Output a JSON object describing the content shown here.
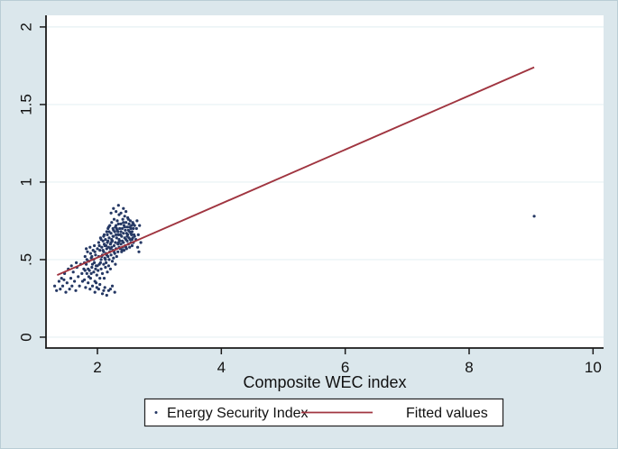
{
  "figure": {
    "background_color": "#dbe7ec",
    "plot_background_color": "#ffffff",
    "border_color": "#b9cdd5",
    "gridline_color": "#e6f1f3",
    "axis_color": "#1a1a1a",
    "text_color": "#111111"
  },
  "chart_data": {
    "type": "scatter",
    "title": "",
    "xlabel": "Composite WEC index",
    "ylabel": "",
    "xlim": [
      1.17,
      10.17
    ],
    "ylim": [
      -0.07,
      2.075
    ],
    "grid": true,
    "legend_position": "bottom-center",
    "x_ticks": [
      {
        "value": 2,
        "label": "2"
      },
      {
        "value": 4,
        "label": "4"
      },
      {
        "value": 6,
        "label": "6"
      },
      {
        "value": 8,
        "label": "8"
      },
      {
        "value": 10,
        "label": "10"
      }
    ],
    "y_ticks": [
      {
        "value": 0,
        "label": "0"
      },
      {
        "value": 0.5,
        "label": ".5"
      },
      {
        "value": 1,
        "label": "1"
      },
      {
        "value": 1.5,
        "label": "1.5"
      },
      {
        "value": 2,
        "label": "2"
      }
    ],
    "series": [
      {
        "name": "Energy Security Index",
        "type": "scatter",
        "color": "#253864",
        "marker": "dot",
        "points": [
          [
            1.31,
            0.33
          ],
          [
            1.34,
            0.3
          ],
          [
            1.38,
            0.36
          ],
          [
            1.4,
            0.31
          ],
          [
            1.42,
            0.38
          ],
          [
            1.44,
            0.33
          ],
          [
            1.47,
            0.41
          ],
          [
            1.49,
            0.29
          ],
          [
            1.51,
            0.35
          ],
          [
            1.53,
            0.44
          ],
          [
            1.55,
            0.31
          ],
          [
            1.57,
            0.38
          ],
          [
            1.59,
            0.33
          ],
          [
            1.61,
            0.42
          ],
          [
            1.63,
            0.36
          ],
          [
            1.65,
            0.3
          ],
          [
            1.67,
            0.45
          ],
          [
            1.69,
            0.39
          ],
          [
            1.71,
            0.33
          ],
          [
            1.73,
            0.47
          ],
          [
            1.75,
            0.41
          ],
          [
            1.76,
            0.36
          ],
          [
            1.66,
            0.48
          ],
          [
            1.58,
            0.46
          ],
          [
            1.46,
            0.37
          ],
          [
            1.78,
            0.44
          ],
          [
            1.79,
            0.37
          ],
          [
            1.8,
            0.52
          ],
          [
            1.81,
            0.32
          ],
          [
            1.82,
            0.47
          ],
          [
            1.83,
            0.41
          ],
          [
            1.84,
            0.55
          ],
          [
            1.85,
            0.35
          ],
          [
            1.86,
            0.49
          ],
          [
            1.87,
            0.43
          ],
          [
            1.88,
            0.58
          ],
          [
            1.89,
            0.38
          ],
          [
            1.9,
            0.51
          ],
          [
            1.91,
            0.45
          ],
          [
            1.92,
            0.33
          ],
          [
            1.93,
            0.56
          ],
          [
            1.94,
            0.42
          ],
          [
            1.95,
            0.48
          ],
          [
            1.96,
            0.36
          ],
          [
            1.97,
            0.53
          ],
          [
            1.98,
            0.46
          ],
          [
            1.99,
            0.4
          ],
          [
            2.0,
            0.57
          ],
          [
            1.8,
            0.43
          ],
          [
            1.83,
            0.5
          ],
          [
            1.86,
            0.39
          ],
          [
            1.89,
            0.54
          ],
          [
            1.92,
            0.47
          ],
          [
            1.95,
            0.59
          ],
          [
            1.98,
            0.35
          ],
          [
            1.79,
            0.48
          ],
          [
            1.85,
            0.44
          ],
          [
            1.91,
            0.52
          ],
          [
            1.97,
            0.44
          ],
          [
            1.88,
            0.31
          ],
          [
            1.94,
            0.5
          ],
          [
            2.0,
            0.46
          ],
          [
            1.82,
            0.57
          ],
          [
            1.9,
            0.41
          ],
          [
            1.96,
            0.55
          ],
          [
            2.01,
            0.43
          ],
          [
            2.02,
            0.52
          ],
          [
            2.02,
            0.61
          ],
          [
            2.03,
            0.47
          ],
          [
            2.04,
            0.56
          ],
          [
            2.04,
            0.38
          ],
          [
            2.05,
            0.64
          ],
          [
            2.06,
            0.5
          ],
          [
            2.06,
            0.44
          ],
          [
            2.07,
            0.58
          ],
          [
            2.08,
            0.41
          ],
          [
            2.08,
            0.53
          ],
          [
            2.09,
            0.62
          ],
          [
            2.1,
            0.47
          ],
          [
            2.1,
            0.55
          ],
          [
            2.11,
            0.38
          ],
          [
            2.11,
            0.66
          ],
          [
            2.12,
            0.51
          ],
          [
            2.12,
            0.59
          ],
          [
            2.13,
            0.45
          ],
          [
            2.13,
            0.63
          ],
          [
            2.14,
            0.54
          ],
          [
            2.14,
            0.48
          ],
          [
            2.15,
            0.68
          ],
          [
            2.15,
            0.57
          ],
          [
            2.16,
            0.42
          ],
          [
            2.16,
            0.61
          ],
          [
            2.17,
            0.52
          ],
          [
            2.17,
            0.7
          ],
          [
            2.18,
            0.46
          ],
          [
            2.18,
            0.58
          ],
          [
            2.19,
            0.64
          ],
          [
            2.19,
            0.5
          ],
          [
            2.2,
            0.55
          ],
          [
            2.2,
            0.72
          ],
          [
            2.21,
            0.6
          ],
          [
            2.21,
            0.44
          ],
          [
            2.22,
            0.67
          ],
          [
            2.22,
            0.53
          ],
          [
            2.23,
            0.58
          ],
          [
            2.23,
            0.74
          ],
          [
            2.24,
            0.49
          ],
          [
            2.24,
            0.62
          ],
          [
            2.25,
            0.56
          ],
          [
            2.25,
            0.7
          ],
          [
            2.26,
            0.51
          ],
          [
            2.26,
            0.65
          ],
          [
            2.27,
            0.59
          ],
          [
            2.27,
            0.76
          ],
          [
            2.28,
            0.54
          ],
          [
            2.28,
            0.68
          ],
          [
            2.29,
            0.61
          ],
          [
            2.29,
            0.47
          ],
          [
            2.3,
            0.72
          ],
          [
            2.3,
            0.57
          ],
          [
            2.31,
            0.64
          ],
          [
            2.31,
            0.52
          ],
          [
            2.32,
            0.69
          ],
          [
            2.32,
            0.75
          ],
          [
            2.33,
            0.6
          ],
          [
            2.33,
            0.55
          ],
          [
            2.34,
            0.66
          ],
          [
            2.34,
            0.73
          ],
          [
            2.35,
            0.58
          ],
          [
            2.35,
            0.63
          ],
          [
            2.05,
            0.48
          ],
          [
            2.09,
            0.56
          ],
          [
            2.13,
            0.5
          ],
          [
            2.17,
            0.62
          ],
          [
            2.21,
            0.57
          ],
          [
            2.25,
            0.65
          ],
          [
            2.29,
            0.71
          ],
          [
            2.33,
            0.68
          ],
          [
            2.07,
            0.52
          ],
          [
            2.11,
            0.6
          ],
          [
            2.15,
            0.53
          ],
          [
            2.19,
            0.68
          ],
          [
            2.23,
            0.63
          ],
          [
            2.27,
            0.55
          ],
          [
            2.31,
            0.7
          ],
          [
            2.03,
            0.59
          ],
          [
            2.06,
            0.63
          ],
          [
            2.1,
            0.65
          ],
          [
            2.14,
            0.59
          ],
          [
            2.18,
            0.71
          ],
          [
            2.22,
            0.61
          ],
          [
            2.26,
            0.69
          ],
          [
            2.3,
            0.66
          ],
          [
            2.34,
            0.61
          ],
          [
            2.16,
            0.66
          ],
          [
            2.36,
            0.62
          ],
          [
            2.36,
            0.7
          ],
          [
            2.37,
            0.57
          ],
          [
            2.37,
            0.66
          ],
          [
            2.38,
            0.73
          ],
          [
            2.38,
            0.6
          ],
          [
            2.39,
            0.65
          ],
          [
            2.39,
            0.55
          ],
          [
            2.4,
            0.7
          ],
          [
            2.4,
            0.62
          ],
          [
            2.41,
            0.76
          ],
          [
            2.41,
            0.58
          ],
          [
            2.42,
            0.67
          ],
          [
            2.42,
            0.61
          ],
          [
            2.43,
            0.72
          ],
          [
            2.43,
            0.56
          ],
          [
            2.44,
            0.64
          ],
          [
            2.44,
            0.78
          ],
          [
            2.45,
            0.69
          ],
          [
            2.45,
            0.59
          ],
          [
            2.46,
            0.74
          ],
          [
            2.46,
            0.63
          ],
          [
            2.47,
            0.67
          ],
          [
            2.47,
            0.57
          ],
          [
            2.48,
            0.71
          ],
          [
            2.48,
            0.62
          ],
          [
            2.49,
            0.77
          ],
          [
            2.49,
            0.66
          ],
          [
            2.5,
            0.6
          ],
          [
            2.5,
            0.69
          ],
          [
            2.51,
            0.73
          ],
          [
            2.51,
            0.64
          ],
          [
            2.52,
            0.58
          ],
          [
            2.52,
            0.68
          ],
          [
            2.53,
            0.75
          ],
          [
            2.53,
            0.63
          ],
          [
            2.54,
            0.7
          ],
          [
            2.54,
            0.61
          ],
          [
            2.55,
            0.66
          ],
          [
            2.55,
            0.72
          ],
          [
            2.56,
            0.59
          ],
          [
            2.56,
            0.68
          ],
          [
            2.57,
            0.74
          ],
          [
            2.57,
            0.64
          ],
          [
            2.58,
            0.61
          ],
          [
            2.58,
            0.7
          ],
          [
            2.59,
            0.66
          ],
          [
            2.6,
            0.72
          ],
          [
            2.38,
            0.68
          ],
          [
            2.42,
            0.74
          ],
          [
            2.46,
            0.58
          ],
          [
            2.5,
            0.76
          ],
          [
            2.54,
            0.67
          ],
          [
            2.58,
            0.73
          ],
          [
            2.4,
            0.56
          ],
          [
            2.44,
            0.71
          ],
          [
            2.48,
            0.65
          ],
          [
            2.52,
            0.71
          ],
          [
            2.56,
            0.63
          ],
          [
            2.6,
            0.65
          ],
          [
            1.96,
            0.29
          ],
          [
            2.02,
            0.31
          ],
          [
            2.08,
            0.28
          ],
          [
            2.12,
            0.32
          ],
          [
            2.18,
            0.3
          ],
          [
            2.24,
            0.33
          ],
          [
            2.28,
            0.29
          ],
          [
            2.04,
            0.34
          ],
          [
            2.15,
            0.27
          ],
          [
            2.21,
            0.31
          ],
          [
            1.99,
            0.32
          ],
          [
            2.1,
            0.3
          ],
          [
            2.22,
            0.8
          ],
          [
            2.26,
            0.83
          ],
          [
            2.3,
            0.81
          ],
          [
            2.34,
            0.85
          ],
          [
            2.38,
            0.8
          ],
          [
            2.42,
            0.83
          ],
          [
            2.35,
            0.79
          ],
          [
            2.46,
            0.81
          ],
          [
            2.62,
            0.63
          ],
          [
            2.63,
            0.7
          ],
          [
            2.65,
            0.58
          ],
          [
            2.66,
            0.66
          ],
          [
            2.68,
            0.72
          ],
          [
            2.7,
            0.61
          ],
          [
            2.64,
            0.75
          ],
          [
            2.67,
            0.55
          ],
          [
            9.05,
            0.78
          ]
        ]
      },
      {
        "name": "Fitted values",
        "type": "line",
        "color": "#a03540",
        "points": [
          [
            1.35,
            0.4
          ],
          [
            9.05,
            1.74
          ]
        ]
      }
    ]
  }
}
